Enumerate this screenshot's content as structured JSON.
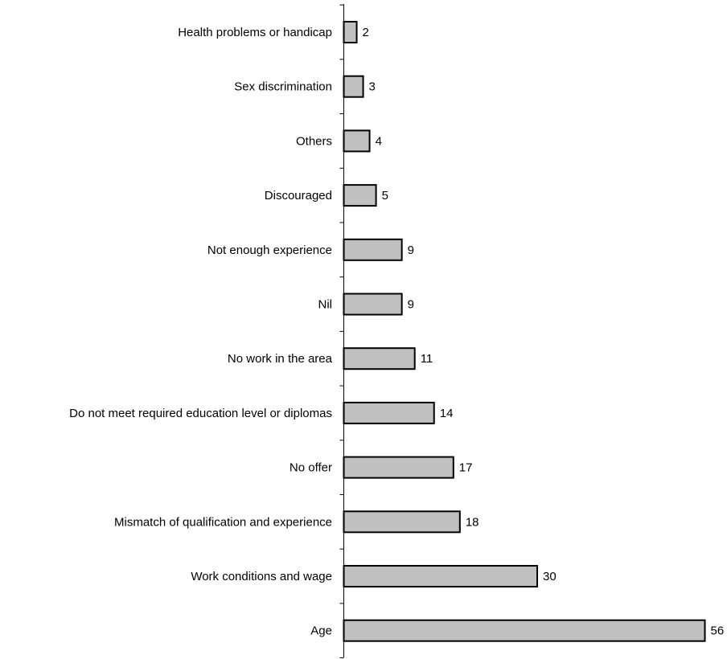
{
  "chart_data": {
    "type": "bar",
    "orientation": "horizontal",
    "title": "",
    "xlabel": "",
    "ylabel": "",
    "grid": false,
    "legend": "none",
    "categories": [
      "Health problems or handicap",
      "Sex discrimination",
      "Others",
      "Discouraged",
      "Not enough experience",
      "Nil",
      "No work in the area",
      "Do not meet required education level or diplomas",
      "No offer",
      "Mismatch of qualification and experience",
      "Work conditions and wage",
      "Age"
    ],
    "values": [
      2,
      3,
      4,
      5,
      9,
      9,
      11,
      14,
      17,
      18,
      30,
      56
    ],
    "xlim": [
      0,
      56
    ],
    "colors": {
      "bar_fill": "#c0c0c0",
      "bar_stroke": "#000000",
      "axis": "#000000",
      "text": "#000000"
    }
  }
}
